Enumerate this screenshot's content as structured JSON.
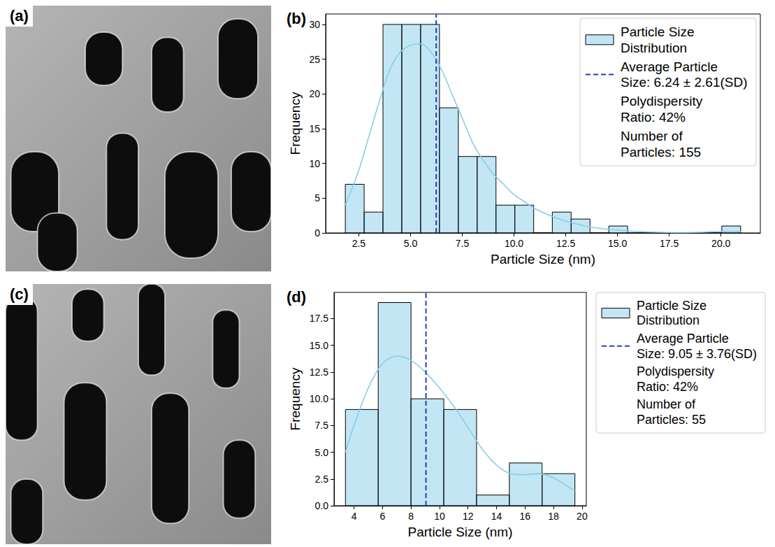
{
  "chart_data": [
    {
      "type": "image",
      "title": "(a)"
    },
    {
      "type": "histogram",
      "title": "(b)",
      "name": "Particle Size Distribution",
      "color": "#87ceeb",
      "x_label": "Particle Size (nm)",
      "y_label": "Frequency",
      "bins": [
        1.85,
        2.76,
        3.67,
        4.58,
        5.49,
        6.4,
        7.31,
        8.22,
        9.13,
        10.04,
        10.95,
        11.85,
        12.76,
        13.67,
        14.58,
        15.49,
        16.4,
        17.31,
        18.22,
        19.13,
        20.04,
        20.95
      ],
      "counts": [
        7,
        3,
        30,
        30,
        30,
        18,
        11,
        11,
        4,
        4,
        0,
        3,
        2,
        0,
        1,
        0,
        0,
        0,
        0,
        0,
        1
      ],
      "kde": {
        "color": "#87ceeb",
        "x": [
          1.85,
          2.5,
          3,
          3.5,
          4,
          4.5,
          5,
          5.5,
          6,
          6.5,
          7,
          7.5,
          8,
          8.5,
          9,
          9.5,
          10,
          10.5,
          11,
          12,
          13,
          14,
          15,
          16,
          17,
          18,
          19,
          20,
          20.95
        ],
        "y": [
          4,
          9,
          14,
          19,
          23.5,
          26,
          27,
          27.2,
          26,
          23.5,
          20,
          16.5,
          13,
          10.5,
          8.5,
          7,
          5.5,
          4.5,
          3.5,
          2.2,
          1.3,
          0.7,
          0.4,
          0.2,
          0.1,
          0.05,
          0.1,
          0.2,
          0.2
        ]
      },
      "mean": {
        "name": "Average Particle Size: 6.24 ± 2.61(SD)",
        "value": 6.24,
        "color": "#1f3fbf",
        "line_style": "dashed"
      },
      "annotations": [
        "Polydispersity Ratio: 42%",
        "Number of Particles: 155"
      ],
      "xlim": [
        0.9,
        21.9
      ],
      "xticks": [
        2.5,
        {
          "value": 5,
          "label": "5.0"
        },
        7.5,
        {
          "value": 10,
          "label": "10.0"
        },
        12.5,
        {
          "value": 15,
          "label": "15.0"
        },
        17.5,
        {
          "value": 20,
          "label": "20.0"
        }
      ],
      "ylim": [
        0,
        31.5
      ],
      "yticks": [
        0,
        5,
        10,
        15,
        20,
        25,
        30
      ],
      "grid": false,
      "legend": "upper right"
    },
    {
      "type": "image",
      "title": "(c)"
    },
    {
      "type": "histogram",
      "title": "(d)",
      "name": "Particle Size Distribution",
      "color": "#87ceeb",
      "x_label": "Particle Size (nm)",
      "y_label": "Frequency",
      "bins": [
        3.4,
        5.7,
        8.0,
        10.3,
        12.6,
        14.9,
        17.2,
        19.5
      ],
      "counts": [
        9,
        19,
        10,
        9,
        1,
        4,
        3
      ],
      "kde": {
        "color": "#87ceeb",
        "x": [
          3.4,
          4,
          5,
          6,
          7,
          8,
          9,
          10,
          11,
          12,
          13,
          14,
          15,
          16,
          17,
          18,
          19,
          19.5
        ],
        "y": [
          5,
          7.5,
          11,
          13.3,
          14,
          13.6,
          12.5,
          11,
          9.3,
          7.3,
          5.3,
          3.8,
          3,
          2.9,
          3,
          2.6,
          1.8,
          1.4
        ]
      },
      "mean": {
        "name": "Average Particle Size: 9.05 ± 3.76(SD)",
        "value": 9.05,
        "color": "#1f3fbf",
        "line_style": "dashed"
      },
      "annotations": [
        "Polydispersity Ratio: 42%",
        "Number of Particles: 55"
      ],
      "xlim": [
        2.6,
        20.3
      ],
      "xticks": [
        4,
        6,
        8,
        10,
        12,
        14,
        16,
        18,
        20
      ],
      "ylim": [
        0,
        19.95
      ],
      "yticks": [
        {
          "value": 0,
          "label": "0.0"
        },
        {
          "value": 2.5,
          "label": "2.5"
        },
        {
          "value": 5,
          "label": "5.0"
        },
        {
          "value": 7.5,
          "label": "7.5"
        },
        {
          "value": 10,
          "label": "10.0"
        },
        {
          "value": 12.5,
          "label": "12.5"
        },
        {
          "value": 15,
          "label": "15.0"
        },
        {
          "value": 17.5,
          "label": "17.5"
        }
      ],
      "grid": false,
      "legend": "right"
    }
  ]
}
